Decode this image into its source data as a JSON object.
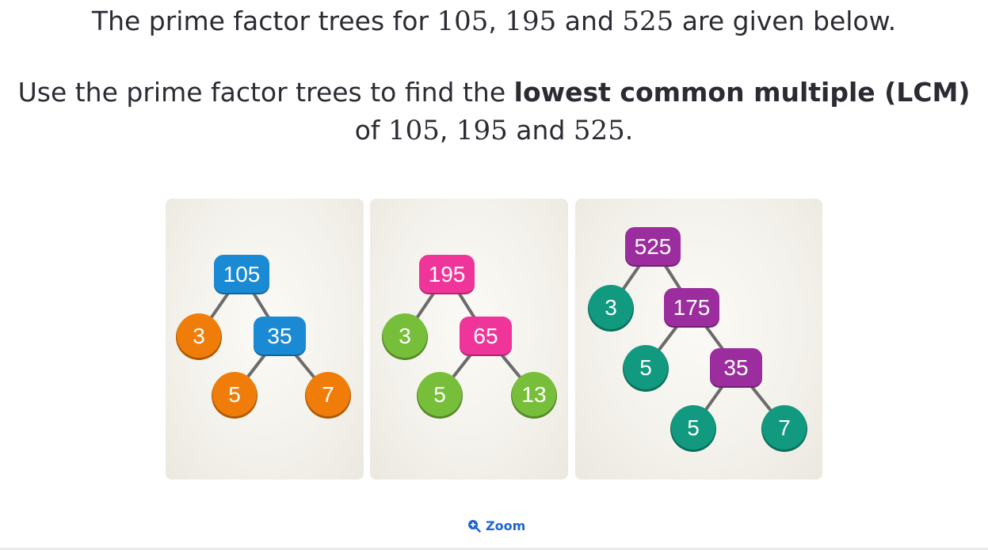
{
  "question": {
    "line1": {
      "prefix": "The prime factor trees for ",
      "n1": "105",
      "sep1": ", ",
      "n2": "195",
      "sep2": " and ",
      "n3": "525",
      "suffix": " are given below."
    },
    "line2": {
      "prefix": "Use the prime factor trees to find the ",
      "bold": "lowest common multiple (LCM)"
    },
    "line3": {
      "prefix": "of ",
      "n1": "105",
      "sep1": ", ",
      "n2": "195",
      "sep2": " and ",
      "n3": "525",
      "suffix": "."
    }
  },
  "trees": [
    {
      "root": "105",
      "color_composite": "#1a8ad4",
      "color_prime": "#f07d0a",
      "nodes": [
        {
          "id": "n105",
          "label": "105",
          "kind": "composite"
        },
        {
          "id": "n3",
          "label": "3",
          "kind": "prime"
        },
        {
          "id": "n35",
          "label": "35",
          "kind": "composite"
        },
        {
          "id": "n5",
          "label": "5",
          "kind": "prime"
        },
        {
          "id": "n7",
          "label": "7",
          "kind": "prime"
        }
      ],
      "edges": [
        [
          "n105",
          "n3"
        ],
        [
          "n105",
          "n35"
        ],
        [
          "n35",
          "n5"
        ],
        [
          "n35",
          "n7"
        ]
      ]
    },
    {
      "root": "195",
      "color_composite": "#f0359a",
      "color_prime": "#77bf3a",
      "nodes": [
        {
          "id": "n195",
          "label": "195",
          "kind": "composite"
        },
        {
          "id": "n3",
          "label": "3",
          "kind": "prime"
        },
        {
          "id": "n65",
          "label": "65",
          "kind": "composite"
        },
        {
          "id": "n5",
          "label": "5",
          "kind": "prime"
        },
        {
          "id": "n13",
          "label": "13",
          "kind": "prime"
        }
      ],
      "edges": [
        [
          "n195",
          "n3"
        ],
        [
          "n195",
          "n65"
        ],
        [
          "n65",
          "n5"
        ],
        [
          "n65",
          "n13"
        ]
      ]
    },
    {
      "root": "525",
      "color_composite": "#9c2d9e",
      "color_prime": "#119a7f",
      "nodes": [
        {
          "id": "n525",
          "label": "525",
          "kind": "composite"
        },
        {
          "id": "n3",
          "label": "3",
          "kind": "prime"
        },
        {
          "id": "n175",
          "label": "175",
          "kind": "composite"
        },
        {
          "id": "n5a",
          "label": "5",
          "kind": "prime"
        },
        {
          "id": "n35",
          "label": "35",
          "kind": "composite"
        },
        {
          "id": "n5b",
          "label": "5",
          "kind": "prime"
        },
        {
          "id": "n7",
          "label": "7",
          "kind": "prime"
        }
      ],
      "edges": [
        [
          "n525",
          "n3"
        ],
        [
          "n525",
          "n175"
        ],
        [
          "n175",
          "n5a"
        ],
        [
          "n175",
          "n35"
        ],
        [
          "n35",
          "n5b"
        ],
        [
          "n35",
          "n7"
        ]
      ]
    }
  ],
  "zoom": {
    "label": "Zoom",
    "icon": "zoom-in-icon",
    "color": "#1f66d1"
  }
}
